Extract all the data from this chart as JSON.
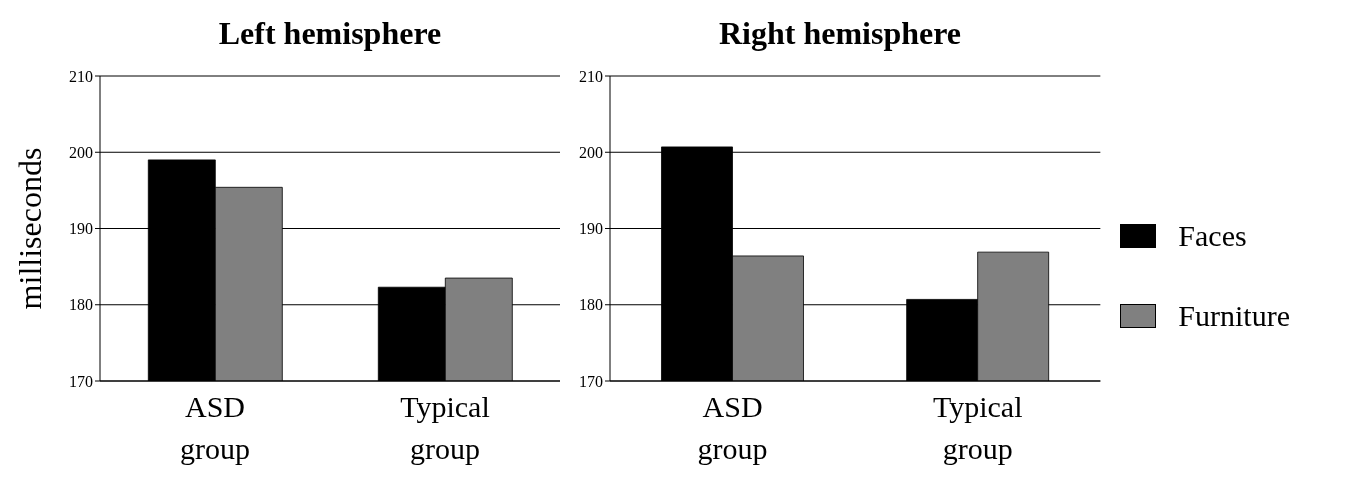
{
  "chart_data": [
    {
      "type": "bar",
      "title": "Left hemisphere",
      "ylabel": "milliseconds",
      "categories": [
        "ASD group",
        "Typical group"
      ],
      "series": [
        {
          "color": "#000000",
          "values": [
            199.0,
            182.3
          ]
        },
        {
          "color": "#808080",
          "values": [
            195.4,
            183.5
          ]
        }
      ],
      "ylim": [
        170,
        210
      ],
      "yticks": [
        170,
        180,
        190,
        200,
        210
      ],
      "grid": "y",
      "legend": false
    },
    {
      "type": "bar",
      "title": "Right hemisphere",
      "categories": [
        "ASD group",
        "Typical group"
      ],
      "series": [
        {
          "name": "Faces",
          "color": "#000000",
          "values": [
            200.7,
            180.7
          ]
        },
        {
          "name": "Furniture",
          "color": "#808080",
          "values": [
            186.4,
            186.9
          ]
        }
      ],
      "ylim": [
        170,
        210
      ],
      "yticks": [
        170,
        180,
        190,
        200,
        210
      ],
      "grid": "y",
      "legend": "right"
    }
  ]
}
